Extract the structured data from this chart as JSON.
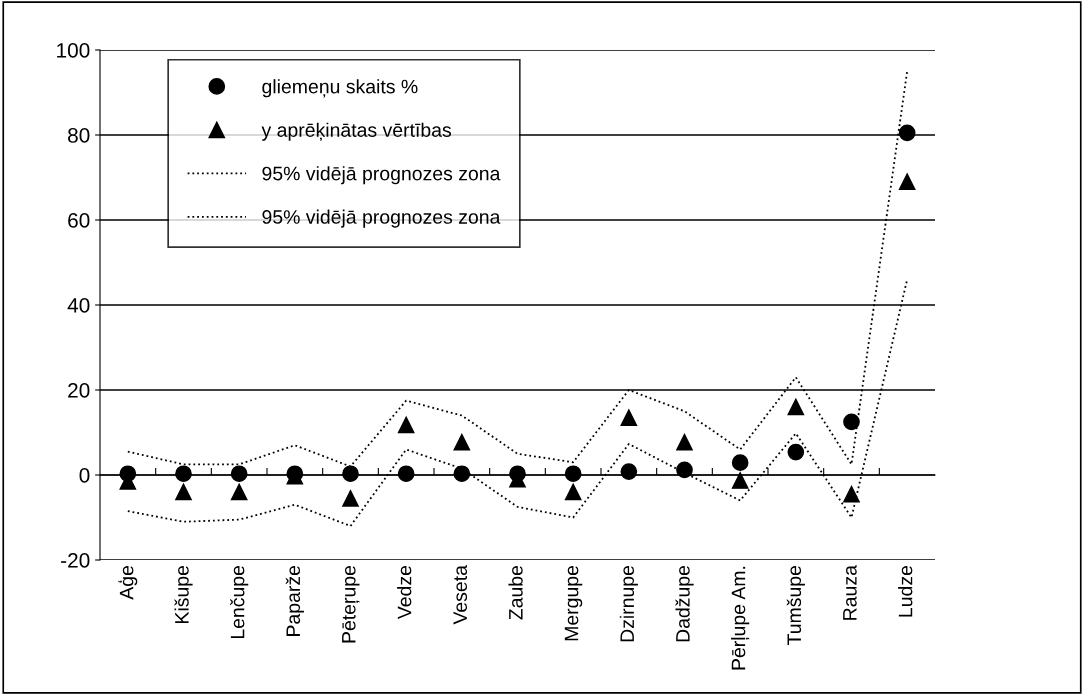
{
  "chart_data": {
    "type": "scatter",
    "categories": [
      "Aģe",
      "Kišupe",
      "Lenčupe",
      "Paparže",
      "Pēteŗupe",
      "Vedze",
      "Veseta",
      "Zaube",
      "Mergupe",
      "Dzirnupe",
      "Dadžupe",
      "Pērļupe Am.",
      "Tumšupe",
      "Rauza",
      "Ludze"
    ],
    "series": [
      {
        "name": "gliemeņu skaits %",
        "marker": "circle",
        "color": "#000000",
        "values": [
          0.3,
          0.3,
          0.3,
          0.3,
          0.3,
          0.3,
          0.3,
          0.3,
          0.3,
          0.8,
          1.2,
          2.9,
          5.4,
          12.5,
          80.5
        ]
      },
      {
        "name": "y aprēķinātas vērtības",
        "marker": "triangle",
        "color": "#000000",
        "values": [
          -1.5,
          -4,
          -4,
          -0.3,
          -5.5,
          11.8,
          7.7,
          -1,
          -4,
          13.5,
          7.7,
          -1.3,
          16,
          -4.5,
          69
        ]
      },
      {
        "name": "95% vidējā prognozes zona",
        "type": "line",
        "line_style": "dotted",
        "color": "#000000",
        "values": [
          5.5,
          2.5,
          2.5,
          7,
          2,
          17.5,
          14,
          5,
          3,
          20,
          15,
          6,
          23,
          2.5,
          95
        ]
      },
      {
        "name": "95% vidējā prognozes zona",
        "type": "line",
        "line_style": "dotted",
        "color": "#000000",
        "values": [
          -8.5,
          -11,
          -10.5,
          -7,
          -12,
          6,
          1.5,
          -7.5,
          -10,
          7.3,
          0.5,
          -6,
          9.8,
          -10,
          46
        ]
      }
    ],
    "ylim": [
      -20,
      100
    ],
    "yticks": [
      -20,
      0,
      20,
      40,
      60,
      80,
      100
    ],
    "grid": "y",
    "legend": "top left"
  }
}
